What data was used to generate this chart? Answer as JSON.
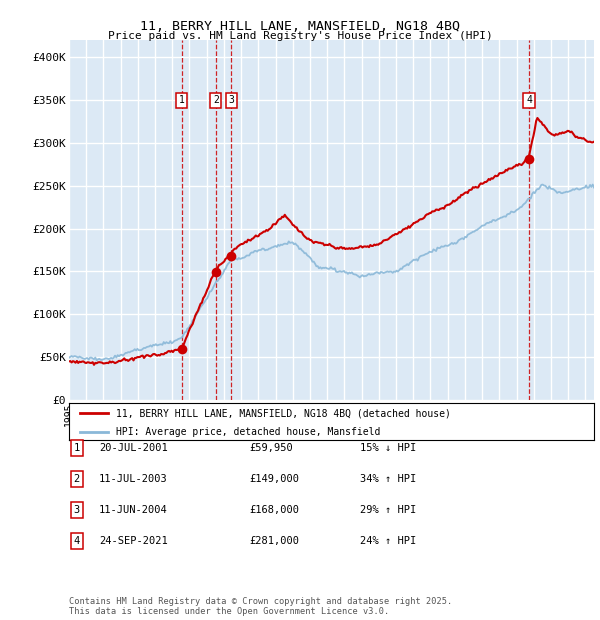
{
  "title1": "11, BERRY HILL LANE, MANSFIELD, NG18 4BQ",
  "title2": "Price paid vs. HM Land Registry's House Price Index (HPI)",
  "ylabel_ticks": [
    "£0",
    "£50K",
    "£100K",
    "£150K",
    "£200K",
    "£250K",
    "£300K",
    "£350K",
    "£400K"
  ],
  "ytick_values": [
    0,
    50000,
    100000,
    150000,
    200000,
    250000,
    300000,
    350000,
    400000
  ],
  "ylim": [
    0,
    420000
  ],
  "xlim_start": 1995.0,
  "xlim_end": 2025.5,
  "bg_color": "#dce9f5",
  "grid_color": "#ffffff",
  "red_line_color": "#cc0000",
  "blue_line_color": "#8ab8d8",
  "transactions": [
    {
      "num": 1,
      "date": "20-JUL-2001",
      "price": 59950,
      "year": 2001.55,
      "label": "15% ↓ HPI"
    },
    {
      "num": 2,
      "date": "11-JUL-2003",
      "price": 149000,
      "year": 2003.53,
      "label": "34% ↑ HPI"
    },
    {
      "num": 3,
      "date": "11-JUN-2004",
      "price": 168000,
      "year": 2004.44,
      "label": "29% ↑ HPI"
    },
    {
      "num": 4,
      "date": "24-SEP-2021",
      "price": 281000,
      "year": 2021.73,
      "label": "24% ↑ HPI"
    }
  ],
  "legend_red": "11, BERRY HILL LANE, MANSFIELD, NG18 4BQ (detached house)",
  "legend_blue": "HPI: Average price, detached house, Mansfield",
  "footer1": "Contains HM Land Registry data © Crown copyright and database right 2025.",
  "footer2": "This data is licensed under the Open Government Licence v3.0.",
  "table_rows": [
    [
      "1",
      "20-JUL-2001",
      "£59,950",
      "15% ↓ HPI"
    ],
    [
      "2",
      "11-JUL-2003",
      "£149,000",
      "34% ↑ HPI"
    ],
    [
      "3",
      "11-JUN-2004",
      "£168,000",
      "29% ↑ HPI"
    ],
    [
      "4",
      "24-SEP-2021",
      "£281,000",
      "24% ↑ HPI"
    ]
  ]
}
